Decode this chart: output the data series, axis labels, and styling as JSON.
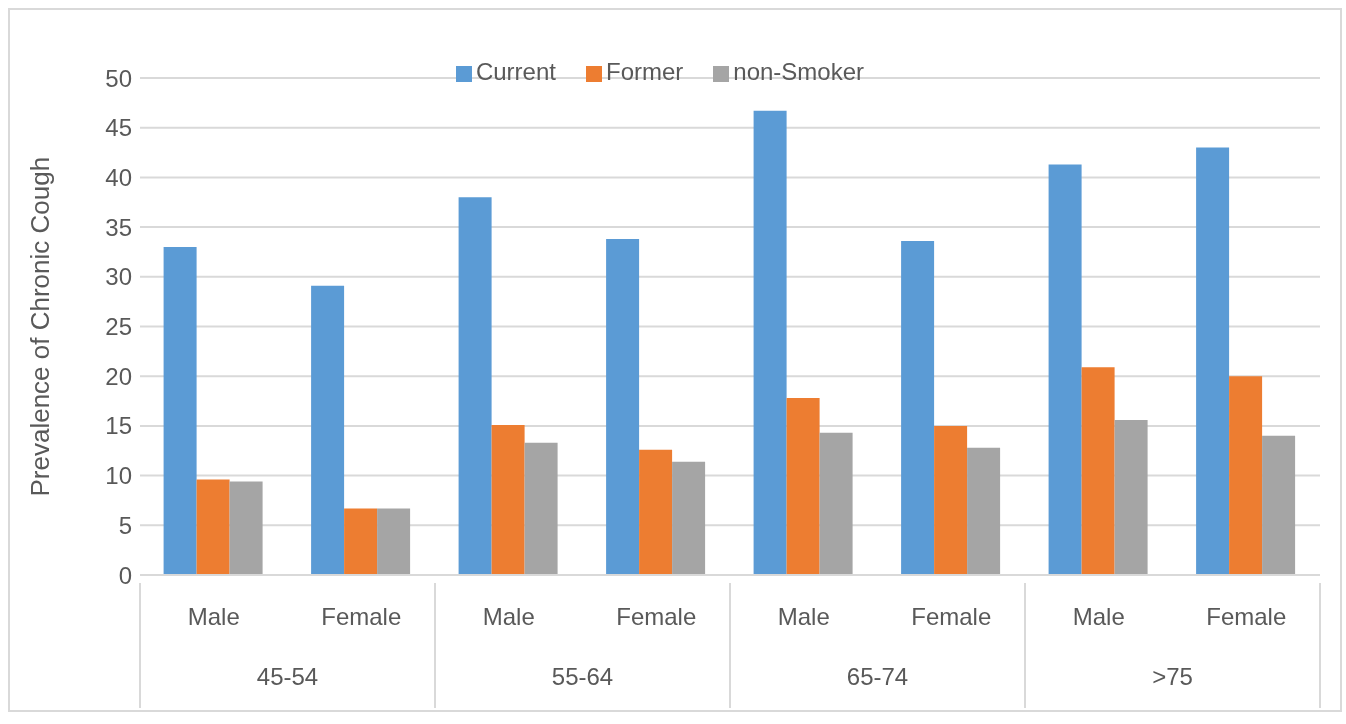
{
  "chart_data": {
    "type": "bar",
    "ylabel": "Prevalence of Chronic Cough",
    "categories": [
      "Male",
      "Female",
      "Male",
      "Female",
      "Male",
      "Female",
      "Male",
      "Female"
    ],
    "annotations": [
      "45-54",
      "55-64",
      "65-74",
      ">75"
    ],
    "series": [
      {
        "name": "Current",
        "color": "#5b9bd5",
        "values": [
          33,
          29.1,
          38,
          33.8,
          46.7,
          33.6,
          41.3,
          43
        ]
      },
      {
        "name": "Former",
        "color": "#ed7d31",
        "values": [
          9.6,
          6.7,
          15.1,
          12.6,
          17.8,
          15,
          20.9,
          20
        ]
      },
      {
        "name": "non-Smoker",
        "color": "#a5a5a5",
        "values": [
          9.4,
          6.7,
          13.3,
          11.4,
          14.3,
          12.8,
          15.6,
          14
        ]
      }
    ],
    "ylim": [
      0,
      50
    ],
    "yticks": [
      0,
      5,
      10,
      15,
      20,
      25,
      30,
      35,
      40,
      45,
      50
    ],
    "grid": "y",
    "legend": "top"
  }
}
